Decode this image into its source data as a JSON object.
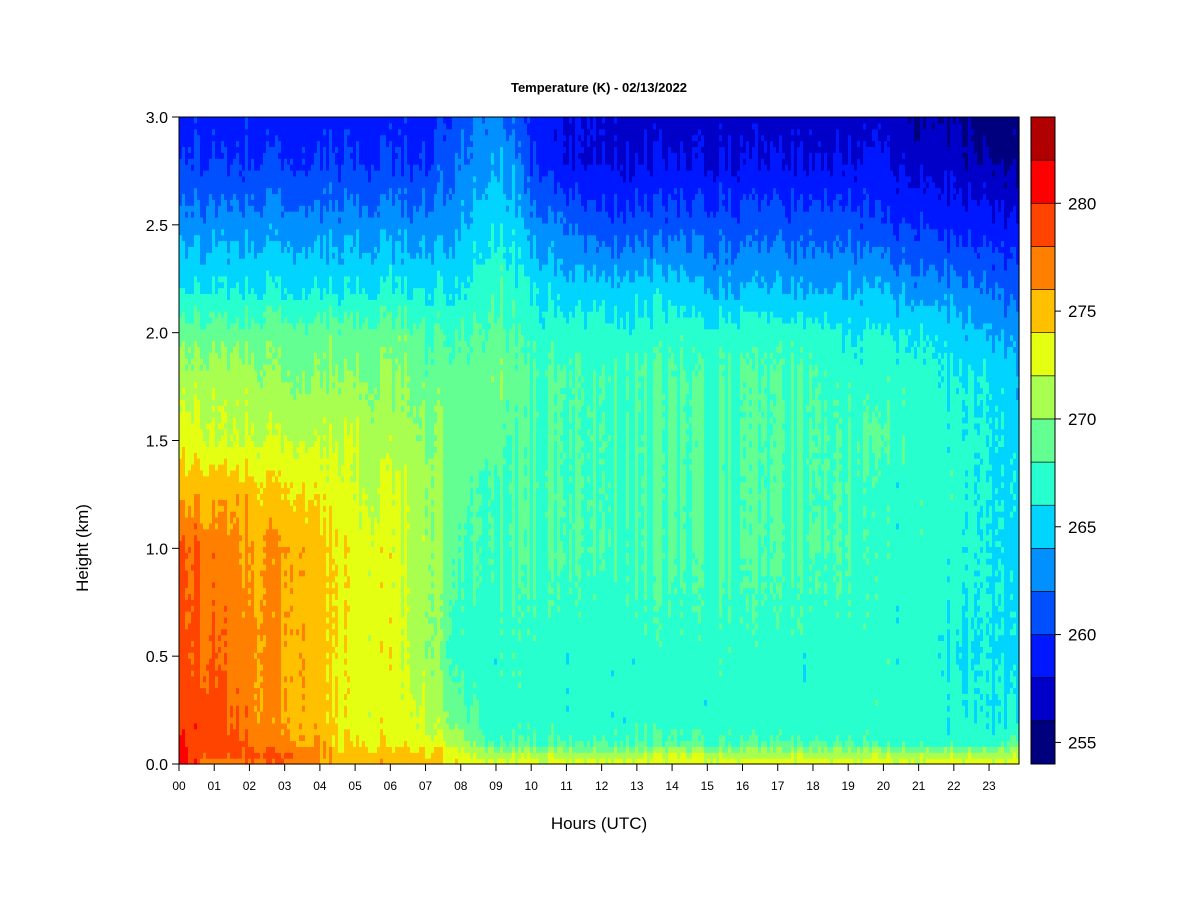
{
  "chart_data": {
    "type": "heatmap",
    "title": "Temperature (K) - 02/13/2022",
    "xlabel": "Hours (UTC)",
    "ylabel": "Height (km)",
    "xlim": [
      0,
      23.85
    ],
    "ylim": [
      0,
      3.0
    ],
    "x_ticks": [
      0,
      1,
      2,
      3,
      4,
      5,
      6,
      7,
      8,
      9,
      10,
      11,
      12,
      13,
      14,
      15,
      16,
      17,
      18,
      19,
      20,
      21,
      22,
      23
    ],
    "x_tick_labels": [
      "00",
      "01",
      "02",
      "03",
      "04",
      "05",
      "06",
      "07",
      "08",
      "09",
      "10",
      "11",
      "12",
      "13",
      "14",
      "15",
      "16",
      "17",
      "18",
      "19",
      "20",
      "21",
      "22",
      "23"
    ],
    "y_ticks": [
      0.0,
      0.5,
      1.0,
      1.5,
      2.0,
      2.5,
      3.0
    ],
    "y_tick_labels": [
      "0.0",
      "0.5",
      "1.0",
      "1.5",
      "2.0",
      "2.5",
      "3.0"
    ],
    "colorbar": {
      "min": 254,
      "max": 284,
      "levels": [
        254,
        256,
        258,
        260,
        262,
        264,
        266,
        268,
        270,
        272,
        274,
        276,
        278,
        280,
        282,
        284
      ],
      "colors": [
        "#00007f",
        "#0000c8",
        "#0018ff",
        "#0050ff",
        "#0090ff",
        "#00d4ff",
        "#28ffce",
        "#64ff92",
        "#a8ff50",
        "#e4ff12",
        "#ffc000",
        "#ff8000",
        "#ff4400",
        "#ff0000",
        "#b00000"
      ],
      "tick_values": [
        255,
        260,
        265,
        270,
        275,
        280
      ],
      "tick_labels": [
        "255",
        "260",
        "265",
        "270",
        "275",
        "280"
      ]
    },
    "time_columns_hours": [
      0,
      0.5,
      1,
      1.5,
      2,
      2.5,
      3,
      3.5,
      4,
      4.5,
      5,
      5.5,
      6,
      6.5,
      7,
      7.5,
      8,
      8.5,
      9,
      9.5,
      10,
      11,
      12,
      13,
      14,
      15,
      16,
      17,
      18,
      19,
      20,
      21,
      22,
      23,
      23.85
    ],
    "height_rows_km": [
      0.0,
      0.05,
      0.1,
      0.2,
      0.5,
      1.0,
      1.3,
      1.5,
      1.8,
      2.0,
      2.2,
      2.5,
      2.8,
      3.0
    ],
    "temperature_K": [
      [
        281,
        279,
        276,
        277,
        278,
        278,
        278,
        278,
        275,
        275,
        275,
        275,
        275,
        275,
        275,
        274,
        274,
        273,
        273,
        273,
        273,
        273,
        273,
        273,
        273,
        273,
        273,
        273,
        273,
        273,
        273,
        273,
        273,
        273,
        273
      ],
      [
        281,
        279,
        279,
        279,
        279,
        278,
        278,
        278,
        277,
        275,
        275,
        275,
        275,
        275,
        275,
        274,
        273,
        271,
        271,
        271,
        271,
        271,
        271,
        271,
        272,
        271,
        271,
        271,
        271,
        271,
        271,
        271,
        271,
        271,
        271
      ],
      [
        280,
        279,
        279,
        279,
        278,
        277,
        277,
        276,
        276,
        274,
        274,
        274,
        273,
        273,
        273,
        273,
        271,
        269,
        268,
        268,
        268,
        268,
        268,
        268,
        268,
        268,
        268,
        268,
        268,
        268,
        267,
        267,
        267,
        267,
        268
      ],
      [
        279,
        279,
        279,
        278,
        277,
        276,
        276,
        276,
        275,
        274,
        273,
        273,
        273,
        273,
        272,
        271,
        269,
        268,
        267,
        267,
        267,
        267,
        267,
        267,
        267,
        267,
        267,
        267,
        267,
        267,
        267,
        267,
        267,
        266,
        266
      ],
      [
        279,
        278,
        278,
        277,
        277,
        276,
        276,
        276,
        275,
        274,
        273,
        273,
        273,
        272,
        271,
        269,
        267,
        267,
        267,
        267,
        267,
        267,
        267,
        267,
        267,
        267,
        267,
        267,
        267,
        267,
        267,
        267,
        266,
        266,
        265
      ],
      [
        278,
        278,
        277,
        277,
        276,
        276,
        276,
        276,
        275,
        274,
        273,
        273,
        273,
        272,
        271,
        270,
        268,
        268,
        268,
        268,
        268,
        268,
        268,
        268,
        268,
        268,
        268,
        268,
        268,
        268,
        267,
        267,
        267,
        266,
        265
      ],
      [
        275,
        275,
        275,
        275,
        275,
        274,
        274,
        274,
        273,
        273,
        272,
        272,
        272,
        272,
        271,
        270,
        269,
        268,
        268,
        268,
        268,
        268,
        268,
        268,
        268,
        268,
        268,
        268,
        268,
        268,
        267,
        267,
        267,
        266,
        265
      ],
      [
        273,
        273,
        272,
        272,
        272,
        272,
        272,
        272,
        272,
        272,
        272,
        271,
        271,
        271,
        270,
        270,
        269,
        269,
        269,
        268,
        268,
        268,
        268,
        268,
        268,
        268,
        268,
        268,
        268,
        268,
        268,
        267,
        267,
        266,
        265
      ],
      [
        271,
        271,
        271,
        271,
        271,
        270,
        270,
        270,
        270,
        270,
        270,
        270,
        270,
        270,
        269,
        269,
        269,
        269,
        270,
        269,
        268,
        268,
        268,
        268,
        268,
        268,
        268,
        268,
        268,
        267,
        267,
        267,
        266,
        266,
        264
      ],
      [
        269,
        269,
        269,
        269,
        269,
        269,
        269,
        269,
        269,
        269,
        269,
        269,
        269,
        269,
        268,
        268,
        268,
        268,
        269,
        268,
        267,
        267,
        267,
        267,
        267,
        267,
        267,
        267,
        267,
        266,
        266,
        266,
        265,
        264,
        263
      ],
      [
        266,
        266,
        266,
        266,
        266,
        266,
        266,
        266,
        266,
        266,
        266,
        266,
        266,
        266,
        266,
        266,
        266,
        267,
        268,
        267,
        266,
        265,
        265,
        265,
        265,
        264,
        264,
        264,
        264,
        264,
        264,
        263,
        263,
        262,
        261
      ],
      [
        263,
        263,
        263,
        263,
        263,
        263,
        263,
        263,
        263,
        263,
        263,
        263,
        263,
        263,
        263,
        263,
        264,
        265,
        266,
        265,
        263,
        262,
        261,
        261,
        261,
        261,
        261,
        261,
        261,
        261,
        260,
        260,
        259,
        259,
        258
      ],
      [
        260,
        260,
        260,
        260,
        260,
        260,
        260,
        260,
        260,
        260,
        260,
        260,
        260,
        260,
        260,
        261,
        262,
        263,
        264,
        263,
        260,
        258,
        258,
        258,
        258,
        258,
        258,
        258,
        258,
        258,
        258,
        257,
        257,
        256,
        255
      ],
      [
        259,
        259,
        259,
        259,
        259,
        259,
        259,
        259,
        259,
        259,
        259,
        259,
        259,
        259,
        259,
        260,
        261,
        262,
        263,
        261,
        259,
        258,
        258,
        257,
        257,
        257,
        257,
        257,
        257,
        257,
        257,
        256,
        256,
        255,
        255
      ]
    ]
  }
}
